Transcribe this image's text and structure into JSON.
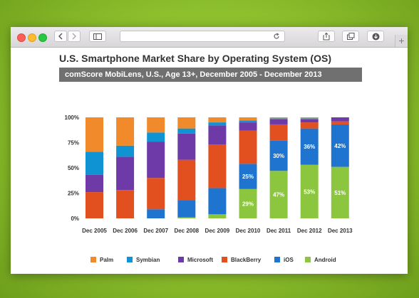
{
  "browser": {
    "toolbar_icons": [
      "back-icon",
      "forward-icon",
      "sidebar-icon",
      "reload-icon",
      "share-icon",
      "tabs-icon",
      "download-icon",
      "plus-icon"
    ],
    "new_tab_glyph": "+",
    "address_text": ""
  },
  "chart_data": {
    "type": "bar",
    "stacked": true,
    "percent_stacked": true,
    "title": "U.S. Smartphone Market Share by Operating System (OS)",
    "subtitle": "comScore MobiLens, U.S., Age 13+, December 2005 - December 2013",
    "categories": [
      "Dec 2005",
      "Dec 2006",
      "Dec 2007",
      "Dec 2008",
      "Dec 2009",
      "Dec 2010",
      "Dec 2011",
      "Dec 2012",
      "Dec 2013"
    ],
    "series": [
      {
        "name": "Android",
        "color": "#8cc63f",
        "values": [
          0,
          0,
          0,
          1,
          4,
          29,
          47,
          53,
          51
        ],
        "data_labels": [
          null,
          null,
          null,
          null,
          null,
          "29%",
          "47%",
          "53%",
          "51%"
        ]
      },
      {
        "name": "iOS",
        "color": "#1f74d0",
        "values": [
          0,
          0,
          9,
          17,
          26,
          25,
          30,
          36,
          42
        ],
        "data_labels": [
          null,
          null,
          null,
          null,
          null,
          "25%",
          "30%",
          "36%",
          "42%"
        ]
      },
      {
        "name": "BlackBerry",
        "color": "#e2501f",
        "values": [
          26,
          28,
          31,
          40,
          43,
          33,
          16,
          6,
          3
        ],
        "data_labels": []
      },
      {
        "name": "Microsoft",
        "color": "#6e3aa8",
        "values": [
          17,
          33,
          36,
          26,
          19,
          8,
          5,
          3,
          4
        ],
        "data_labels": []
      },
      {
        "name": "Symbian",
        "color": "#0f93d2",
        "values": [
          23,
          11,
          9,
          5,
          3,
          2,
          1,
          1,
          0
        ],
        "data_labels": []
      },
      {
        "name": "Palm",
        "color": "#f08a2a",
        "values": [
          34,
          28,
          15,
          11,
          5,
          3,
          1,
          1,
          0
        ],
        "data_labels": []
      }
    ],
    "legend_order": [
      "Palm",
      "Symbian",
      "Microsoft",
      "BlackBerry",
      "iOS",
      "Android"
    ],
    "yticks": [
      "0%",
      "25%",
      "50%",
      "75%",
      "100%"
    ],
    "ylim": [
      0,
      100
    ],
    "xlabel": "",
    "ylabel": "",
    "grid": false,
    "legend_position": "bottom"
  }
}
